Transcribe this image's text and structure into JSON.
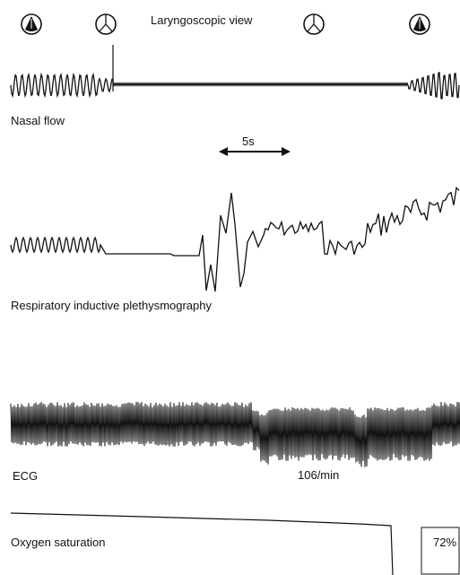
{
  "title": "Laryngoscopic view",
  "traces": {
    "nasal_flow": {
      "label": "Nasal flow"
    },
    "rip": {
      "label": "Respiratory inductive plethysmography"
    },
    "ecg": {
      "label": "ECG",
      "heart_rate": "106/min"
    },
    "oxygen": {
      "label": "Oxygen saturation",
      "value": "72%"
    }
  },
  "time_scale": {
    "label": "5s"
  },
  "laryngoscopic_icons": [
    "larynx-closed-icon",
    "larynx-open-icon",
    "larynx-open-icon",
    "larynx-closed-icon"
  ],
  "colors": {
    "ink": "#111111",
    "background": "#ffffff"
  }
}
